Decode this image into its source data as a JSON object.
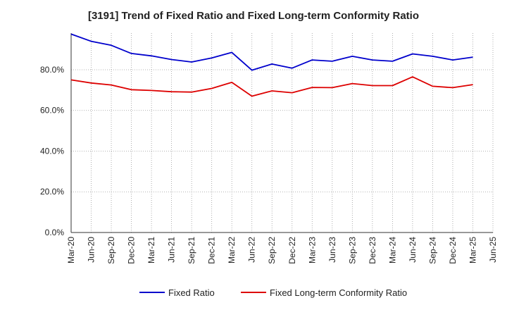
{
  "chart_data": {
    "type": "line",
    "title": "[3191]  Trend of Fixed Ratio and Fixed Long-term Conformity Ratio",
    "xlabel": "",
    "ylabel": "",
    "categories": [
      "Mar-20",
      "Jun-20",
      "Sep-20",
      "Dec-20",
      "Mar-21",
      "Jun-21",
      "Sep-21",
      "Dec-21",
      "Mar-22",
      "Jun-22",
      "Sep-22",
      "Dec-22",
      "Mar-23",
      "Jun-23",
      "Sep-23",
      "Dec-23",
      "Mar-24",
      "Jun-24",
      "Sep-24",
      "Dec-24",
      "Mar-25",
      "Jun-25"
    ],
    "ylim": [
      0,
      98
    ],
    "yticks": [
      0,
      20,
      40,
      60,
      80
    ],
    "ytick_labels": [
      "0.0%",
      "20.0%",
      "40.0%",
      "60.0%",
      "80.0%"
    ],
    "grid": true,
    "legend_position": "bottom",
    "series": [
      {
        "name": "Fixed Ratio",
        "color": "#0000cc",
        "values": [
          97.5,
          94.0,
          92.0,
          88.0,
          86.8,
          85.0,
          83.8,
          85.8,
          88.5,
          79.8,
          82.8,
          80.8,
          84.8,
          84.2,
          86.6,
          84.8,
          84.2,
          87.8,
          86.6,
          84.8,
          86.2,
          null
        ]
      },
      {
        "name": "Fixed Long-term Conformity Ratio",
        "color": "#dd0000",
        "values": [
          75.0,
          73.5,
          72.5,
          70.2,
          69.8,
          69.2,
          69.0,
          70.8,
          73.8,
          67.0,
          69.6,
          68.7,
          71.3,
          71.2,
          73.2,
          72.2,
          72.2,
          76.5,
          71.9,
          71.2,
          72.7,
          null
        ]
      }
    ]
  }
}
